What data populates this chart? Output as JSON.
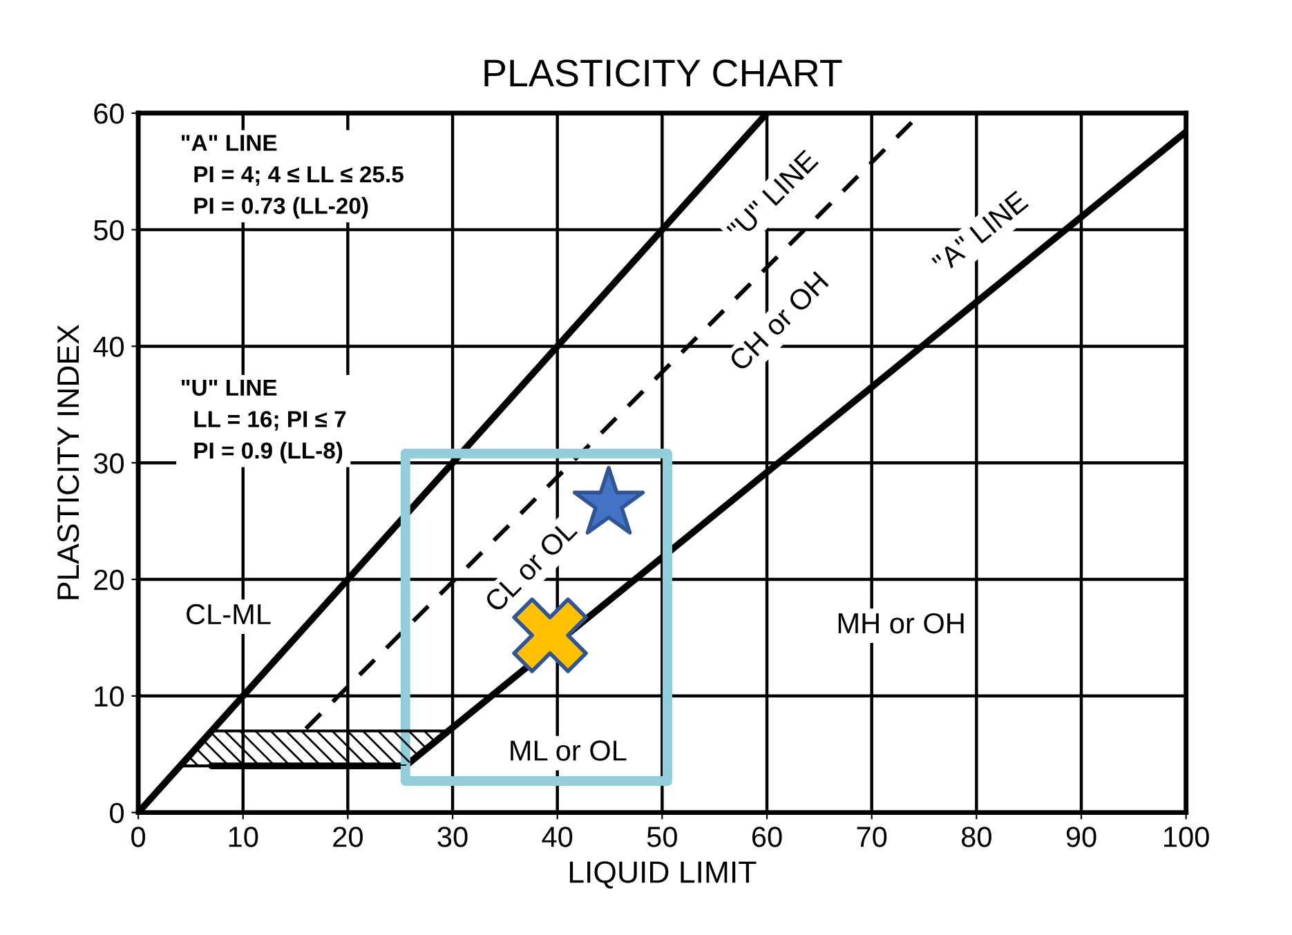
{
  "chart_data": {
    "type": "line",
    "title": "PLASTICITY CHART",
    "xlabel": "LIQUID LIMIT",
    "ylabel": "PLASTICITY INDEX",
    "xlim": [
      0,
      100
    ],
    "ylim": [
      0,
      60
    ],
    "xticks": [
      0,
      10,
      20,
      30,
      40,
      50,
      60,
      70,
      80,
      90,
      100
    ],
    "yticks": [
      0,
      10,
      20,
      30,
      40,
      50,
      60
    ],
    "grid": true,
    "series": [
      {
        "color": "#000000",
        "line_style": "solid",
        "x": [
          0,
          60
        ],
        "values": [
          0,
          60
        ]
      },
      {
        "color": "#000000",
        "line_style": "solid",
        "x": [
          7,
          25.5,
          100
        ],
        "values": [
          4,
          4,
          58.4
        ]
      },
      {
        "color": "#000000",
        "line_style": "dashed",
        "x": [
          16,
          74.7
        ],
        "values": [
          7.2,
          60
        ]
      },
      {
        "color": "#92cddc",
        "line_style": "solid",
        "x": [
          25.5,
          25.5,
          50.5
        ],
        "values": [
          30.8,
          2.7,
          2.7
        ]
      },
      {
        "color": "#92cddc",
        "line_style": "solid",
        "x": [
          25.5,
          50.5,
          50.5
        ],
        "values": [
          30.8,
          30.8,
          2.7
        ]
      },
      {
        "type": "scatter",
        "color": "#4472c4",
        "marker": "star",
        "x": [
          44.9
        ],
        "values": [
          26.5
        ]
      },
      {
        "type": "scatter",
        "color": "#ffc000",
        "marker": "cross",
        "x": [
          39.3
        ],
        "values": [
          15.2
        ]
      }
    ],
    "bands": [
      {
        "axis": "y",
        "from": 4,
        "to": 7,
        "color": "#000000"
      }
    ],
    "annotations": [
      "\"A\" LINE\n  PI = 4; 4 ≤ LL ≤ 25.5\n  PI = 0.73 (LL-20)",
      "\"U\" LINE\n  LL = 16; PI ≤ 7\n  PI = 0.9 (LL-8)",
      "CL-ML",
      "ML or OL",
      "MH or OH",
      "CL or OL",
      "CH or OH",
      "\"U\" LINE",
      "\"A\" LINE"
    ]
  }
}
